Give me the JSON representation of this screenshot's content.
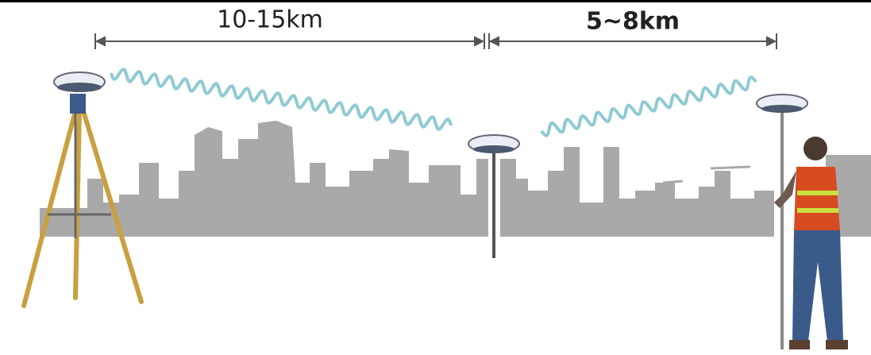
{
  "labels": {
    "left_distance": "10-15km",
    "right_distance": "5~8km"
  }
}
